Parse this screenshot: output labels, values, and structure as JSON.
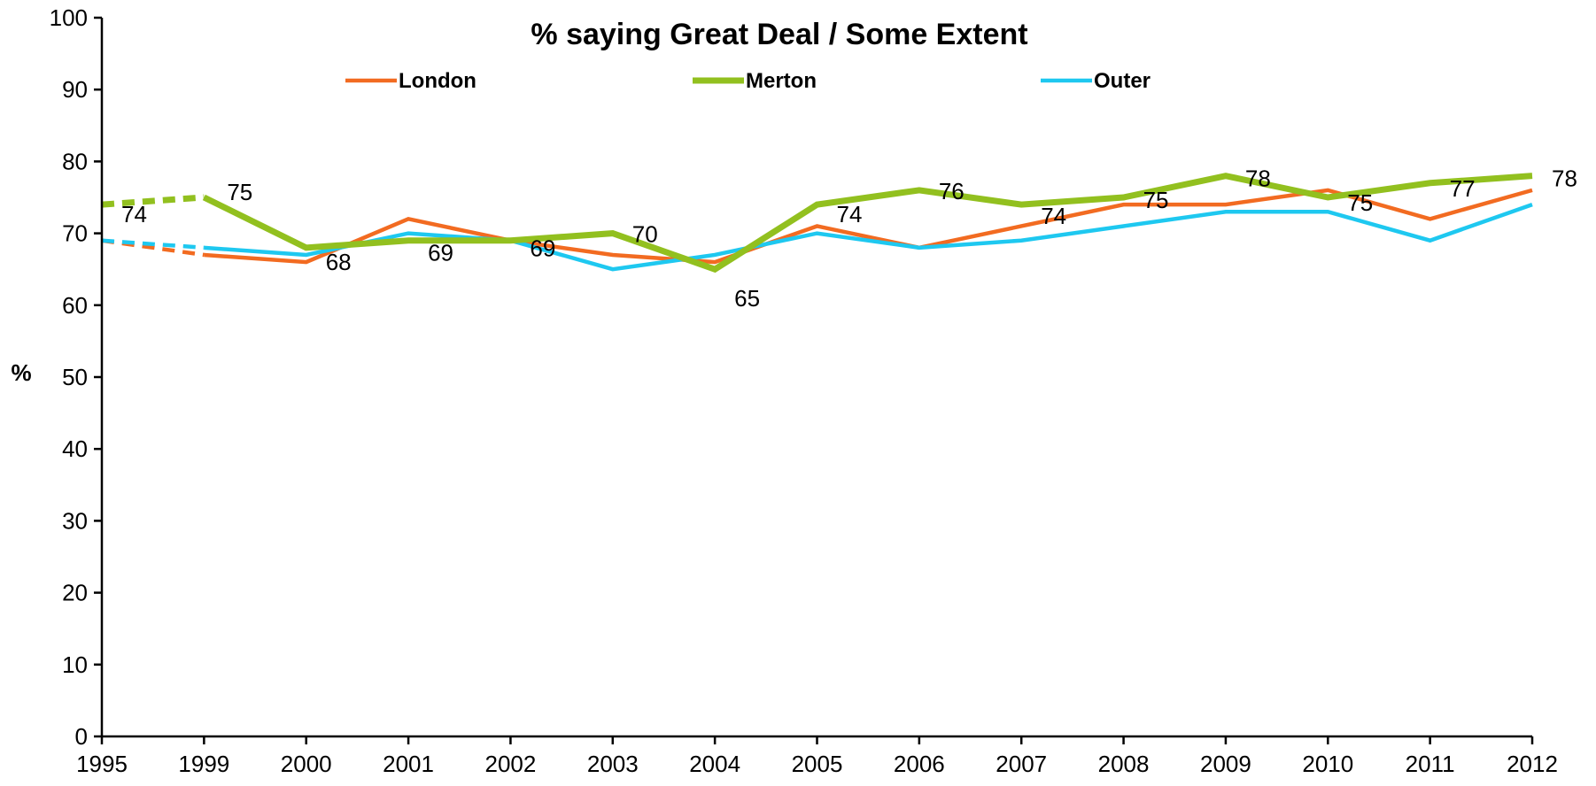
{
  "chart_data": {
    "type": "line",
    "title": "% saying Great Deal / Some Extent",
    "ylabel": "%",
    "xlabel": "",
    "ylim": [
      0,
      100
    ],
    "yticks": [
      0,
      10,
      20,
      30,
      40,
      50,
      60,
      70,
      80,
      90,
      100
    ],
    "categories": [
      "1995",
      "1999",
      "2000",
      "2001",
      "2002",
      "2003",
      "2004",
      "2005",
      "2006",
      "2007",
      "2008",
      "2009",
      "2010",
      "2011",
      "2012"
    ],
    "dashed_first_segment": true,
    "legend_position": "top",
    "grid": false,
    "series": [
      {
        "name": "London",
        "color": "#f26b21",
        "values": [
          69,
          67,
          66,
          72,
          69,
          67,
          66,
          71,
          68,
          71,
          74,
          74,
          76,
          72,
          76
        ],
        "labels_shown": false
      },
      {
        "name": "Merton",
        "color": "#92c01f",
        "values": [
          74,
          75,
          68,
          69,
          69,
          70,
          65,
          74,
          76,
          74,
          75,
          78,
          75,
          77,
          78
        ],
        "labels_shown": true
      },
      {
        "name": "Outer",
        "color": "#1ec8f0",
        "values": [
          69,
          68,
          67,
          70,
          69,
          65,
          67,
          70,
          68,
          69,
          71,
          73,
          73,
          69,
          74
        ],
        "labels_shown": false
      }
    ]
  }
}
